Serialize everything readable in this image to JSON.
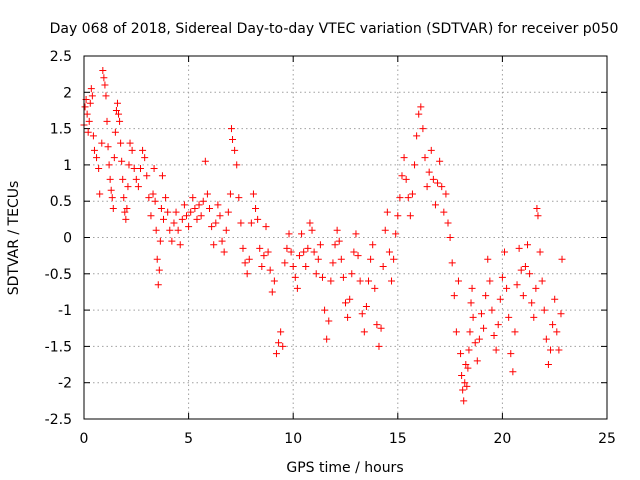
{
  "chart_data": {
    "type": "scatter",
    "title": "Day 068 of 2018, Sidereal Day-to-day VTEC variation (SDTVAR) for receiver p050",
    "xlabel": "GPS time / hours",
    "ylabel": "SDTVAR / TECUs",
    "xlim": [
      0,
      25
    ],
    "ylim": [
      -2.5,
      2.5
    ],
    "xticks": [
      0,
      5,
      10,
      15,
      20,
      25
    ],
    "yticks": [
      -2.5,
      -2,
      -1.5,
      -1,
      -0.5,
      0,
      0.5,
      1,
      1.5,
      2,
      2.5
    ],
    "xtick_labels": [
      "0",
      "5",
      "10",
      "15",
      "20",
      "25"
    ],
    "ytick_labels": [
      "-2.5",
      "-2",
      "-1.5",
      "-1",
      "-0.5",
      "0",
      "0.5",
      "1",
      "1.5",
      "2",
      "2.5"
    ],
    "grid": true,
    "marker": "+",
    "color": "#ff0000",
    "series": [
      {
        "name": "SDTVAR",
        "points": [
          [
            0.0,
            1.55
          ],
          [
            0.05,
            1.8
          ],
          [
            0.1,
            1.9
          ],
          [
            0.15,
            1.7
          ],
          [
            0.2,
            1.45
          ],
          [
            0.25,
            1.6
          ],
          [
            0.3,
            1.85
          ],
          [
            0.35,
            2.05
          ],
          [
            0.4,
            1.95
          ],
          [
            0.45,
            1.4
          ],
          [
            0.5,
            1.2
          ],
          [
            0.6,
            1.1
          ],
          [
            0.7,
            0.95
          ],
          [
            0.75,
            0.6
          ],
          [
            0.85,
            1.3
          ],
          [
            0.9,
            2.3
          ],
          [
            0.95,
            2.2
          ],
          [
            1.0,
            2.1
          ],
          [
            1.05,
            1.95
          ],
          [
            1.1,
            1.6
          ],
          [
            1.15,
            1.25
          ],
          [
            1.2,
            1.0
          ],
          [
            1.25,
            0.8
          ],
          [
            1.3,
            0.65
          ],
          [
            1.35,
            0.55
          ],
          [
            1.4,
            0.4
          ],
          [
            1.45,
            1.1
          ],
          [
            1.5,
            1.45
          ],
          [
            1.55,
            1.75
          ],
          [
            1.6,
            1.85
          ],
          [
            1.65,
            1.7
          ],
          [
            1.7,
            1.6
          ],
          [
            1.75,
            1.3
          ],
          [
            1.8,
            1.05
          ],
          [
            1.85,
            0.8
          ],
          [
            1.9,
            0.55
          ],
          [
            1.95,
            0.35
          ],
          [
            2.0,
            0.25
          ],
          [
            2.05,
            0.4
          ],
          [
            2.1,
            0.7
          ],
          [
            2.15,
            1.0
          ],
          [
            2.2,
            1.3
          ],
          [
            2.3,
            1.2
          ],
          [
            2.4,
            0.95
          ],
          [
            2.5,
            0.8
          ],
          [
            2.6,
            0.7
          ],
          [
            2.7,
            0.95
          ],
          [
            2.8,
            1.2
          ],
          [
            2.9,
            1.1
          ],
          [
            3.0,
            0.85
          ],
          [
            3.1,
            0.55
          ],
          [
            3.2,
            0.3
          ],
          [
            3.3,
            0.6
          ],
          [
            3.35,
            0.95
          ],
          [
            3.4,
            0.5
          ],
          [
            3.45,
            0.1
          ],
          [
            3.5,
            -0.3
          ],
          [
            3.55,
            -0.65
          ],
          [
            3.6,
            -0.45
          ],
          [
            3.65,
            -0.05
          ],
          [
            3.7,
            0.4
          ],
          [
            3.75,
            0.85
          ],
          [
            3.8,
            0.25
          ],
          [
            3.9,
            0.55
          ],
          [
            4.0,
            0.35
          ],
          [
            4.1,
            0.1
          ],
          [
            4.2,
            -0.05
          ],
          [
            4.3,
            0.2
          ],
          [
            4.4,
            0.35
          ],
          [
            4.5,
            0.1
          ],
          [
            4.6,
            -0.1
          ],
          [
            4.7,
            0.25
          ],
          [
            4.8,
            0.45
          ],
          [
            4.9,
            0.3
          ],
          [
            5.0,
            0.15
          ],
          [
            5.1,
            0.35
          ],
          [
            5.2,
            0.55
          ],
          [
            5.3,
            0.4
          ],
          [
            5.4,
            0.25
          ],
          [
            5.5,
            0.45
          ],
          [
            5.6,
            0.3
          ],
          [
            5.7,
            0.5
          ],
          [
            5.8,
            1.05
          ],
          [
            5.9,
            0.6
          ],
          [
            6.0,
            0.4
          ],
          [
            6.1,
            0.15
          ],
          [
            6.2,
            -0.1
          ],
          [
            6.3,
            0.2
          ],
          [
            6.4,
            0.45
          ],
          [
            6.5,
            0.3
          ],
          [
            6.6,
            -0.05
          ],
          [
            6.7,
            -0.2
          ],
          [
            6.8,
            0.1
          ],
          [
            6.9,
            0.35
          ],
          [
            7.0,
            0.6
          ],
          [
            7.05,
            1.5
          ],
          [
            7.1,
            1.35
          ],
          [
            7.2,
            1.2
          ],
          [
            7.3,
            1.0
          ],
          [
            7.4,
            0.55
          ],
          [
            7.5,
            0.2
          ],
          [
            7.6,
            -0.15
          ],
          [
            7.7,
            -0.35
          ],
          [
            7.8,
            -0.5
          ],
          [
            7.9,
            -0.3
          ],
          [
            8.0,
            0.2
          ],
          [
            8.1,
            0.6
          ],
          [
            8.2,
            0.4
          ],
          [
            8.3,
            0.25
          ],
          [
            8.4,
            -0.15
          ],
          [
            8.5,
            -0.4
          ],
          [
            8.6,
            -0.25
          ],
          [
            8.7,
            0.15
          ],
          [
            8.8,
            -0.2
          ],
          [
            8.9,
            -0.45
          ],
          [
            9.0,
            -0.75
          ],
          [
            9.1,
            -0.6
          ],
          [
            9.2,
            -1.6
          ],
          [
            9.3,
            -1.45
          ],
          [
            9.4,
            -1.3
          ],
          [
            9.5,
            -1.5
          ],
          [
            9.6,
            -0.35
          ],
          [
            9.7,
            -0.15
          ],
          [
            9.8,
            0.05
          ],
          [
            9.9,
            -0.2
          ],
          [
            10.0,
            -0.4
          ],
          [
            10.1,
            -0.55
          ],
          [
            10.2,
            -0.7
          ],
          [
            10.3,
            -0.25
          ],
          [
            10.4,
            0.05
          ],
          [
            10.5,
            -0.2
          ],
          [
            10.6,
            -0.4
          ],
          [
            10.7,
            -0.15
          ],
          [
            10.8,
            0.2
          ],
          [
            10.9,
            0.1
          ],
          [
            11.0,
            -0.2
          ],
          [
            11.1,
            -0.5
          ],
          [
            11.2,
            -0.3
          ],
          [
            11.3,
            -0.1
          ],
          [
            11.4,
            -0.55
          ],
          [
            11.5,
            -1.0
          ],
          [
            11.6,
            -1.4
          ],
          [
            11.7,
            -1.15
          ],
          [
            11.8,
            -0.6
          ],
          [
            11.9,
            -0.35
          ],
          [
            12.0,
            -0.1
          ],
          [
            12.1,
            0.1
          ],
          [
            12.2,
            -0.05
          ],
          [
            12.3,
            -0.3
          ],
          [
            12.4,
            -0.55
          ],
          [
            12.5,
            -0.9
          ],
          [
            12.6,
            -1.1
          ],
          [
            12.7,
            -0.85
          ],
          [
            12.8,
            -0.5
          ],
          [
            12.9,
            -0.2
          ],
          [
            13.0,
            0.05
          ],
          [
            13.1,
            -0.25
          ],
          [
            13.2,
            -0.6
          ],
          [
            13.3,
            -1.05
          ],
          [
            13.4,
            -1.3
          ],
          [
            13.5,
            -0.95
          ],
          [
            13.6,
            -0.6
          ],
          [
            13.7,
            -0.3
          ],
          [
            13.8,
            -0.1
          ],
          [
            13.9,
            -0.7
          ],
          [
            14.0,
            -1.2
          ],
          [
            14.1,
            -1.5
          ],
          [
            14.2,
            -1.25
          ],
          [
            14.3,
            -0.4
          ],
          [
            14.4,
            0.1
          ],
          [
            14.5,
            0.35
          ],
          [
            14.6,
            -0.2
          ],
          [
            14.7,
            -0.6
          ],
          [
            14.8,
            -0.3
          ],
          [
            14.9,
            0.05
          ],
          [
            15.0,
            0.3
          ],
          [
            15.1,
            0.55
          ],
          [
            15.2,
            0.85
          ],
          [
            15.3,
            1.1
          ],
          [
            15.4,
            0.8
          ],
          [
            15.5,
            0.55
          ],
          [
            15.6,
            0.3
          ],
          [
            15.7,
            0.6
          ],
          [
            15.8,
            1.0
          ],
          [
            15.9,
            1.4
          ],
          [
            16.0,
            1.7
          ],
          [
            16.1,
            1.8
          ],
          [
            16.2,
            1.5
          ],
          [
            16.3,
            1.1
          ],
          [
            16.4,
            0.7
          ],
          [
            16.5,
            0.9
          ],
          [
            16.6,
            1.2
          ],
          [
            16.7,
            0.8
          ],
          [
            16.8,
            0.45
          ],
          [
            16.9,
            0.75
          ],
          [
            17.0,
            1.05
          ],
          [
            17.1,
            0.7
          ],
          [
            17.2,
            0.35
          ],
          [
            17.3,
            0.6
          ],
          [
            17.4,
            0.2
          ],
          [
            17.5,
            0.0
          ],
          [
            17.6,
            -0.35
          ],
          [
            17.7,
            -0.8
          ],
          [
            17.8,
            -1.3
          ],
          [
            17.9,
            -0.6
          ],
          [
            18.0,
            -1.6
          ],
          [
            18.05,
            -1.9
          ],
          [
            18.1,
            -2.1
          ],
          [
            18.15,
            -2.25
          ],
          [
            18.2,
            -2.0
          ],
          [
            18.25,
            -1.75
          ],
          [
            18.3,
            -2.05
          ],
          [
            18.35,
            -1.8
          ],
          [
            18.4,
            -1.55
          ],
          [
            18.45,
            -1.3
          ],
          [
            18.5,
            -0.9
          ],
          [
            18.55,
            -0.7
          ],
          [
            18.6,
            -1.1
          ],
          [
            18.7,
            -1.45
          ],
          [
            18.8,
            -1.7
          ],
          [
            18.9,
            -1.4
          ],
          [
            19.0,
            -1.05
          ],
          [
            19.1,
            -1.25
          ],
          [
            19.2,
            -0.8
          ],
          [
            19.3,
            -0.3
          ],
          [
            19.4,
            -0.6
          ],
          [
            19.5,
            -1.0
          ],
          [
            19.6,
            -1.35
          ],
          [
            19.7,
            -1.55
          ],
          [
            19.8,
            -1.2
          ],
          [
            19.9,
            -0.85
          ],
          [
            20.0,
            -0.55
          ],
          [
            20.1,
            -0.2
          ],
          [
            20.2,
            -0.7
          ],
          [
            20.3,
            -1.1
          ],
          [
            20.4,
            -1.6
          ],
          [
            20.5,
            -1.85
          ],
          [
            20.6,
            -1.3
          ],
          [
            20.7,
            -0.65
          ],
          [
            20.8,
            -0.15
          ],
          [
            20.9,
            -0.45
          ],
          [
            21.0,
            -0.8
          ],
          [
            21.1,
            -0.4
          ],
          [
            21.2,
            -0.1
          ],
          [
            21.3,
            -0.5
          ],
          [
            21.4,
            -0.9
          ],
          [
            21.5,
            -1.1
          ],
          [
            21.6,
            -0.7
          ],
          [
            21.65,
            0.4
          ],
          [
            21.7,
            0.3
          ],
          [
            21.8,
            -0.2
          ],
          [
            21.9,
            -0.6
          ],
          [
            22.0,
            -1.0
          ],
          [
            22.1,
            -1.4
          ],
          [
            22.2,
            -1.75
          ],
          [
            22.3,
            -1.55
          ],
          [
            22.4,
            -1.2
          ],
          [
            22.5,
            -0.85
          ],
          [
            22.6,
            -1.3
          ],
          [
            22.7,
            -1.55
          ],
          [
            22.8,
            -1.05
          ],
          [
            22.85,
            -0.3
          ]
        ]
      }
    ]
  }
}
